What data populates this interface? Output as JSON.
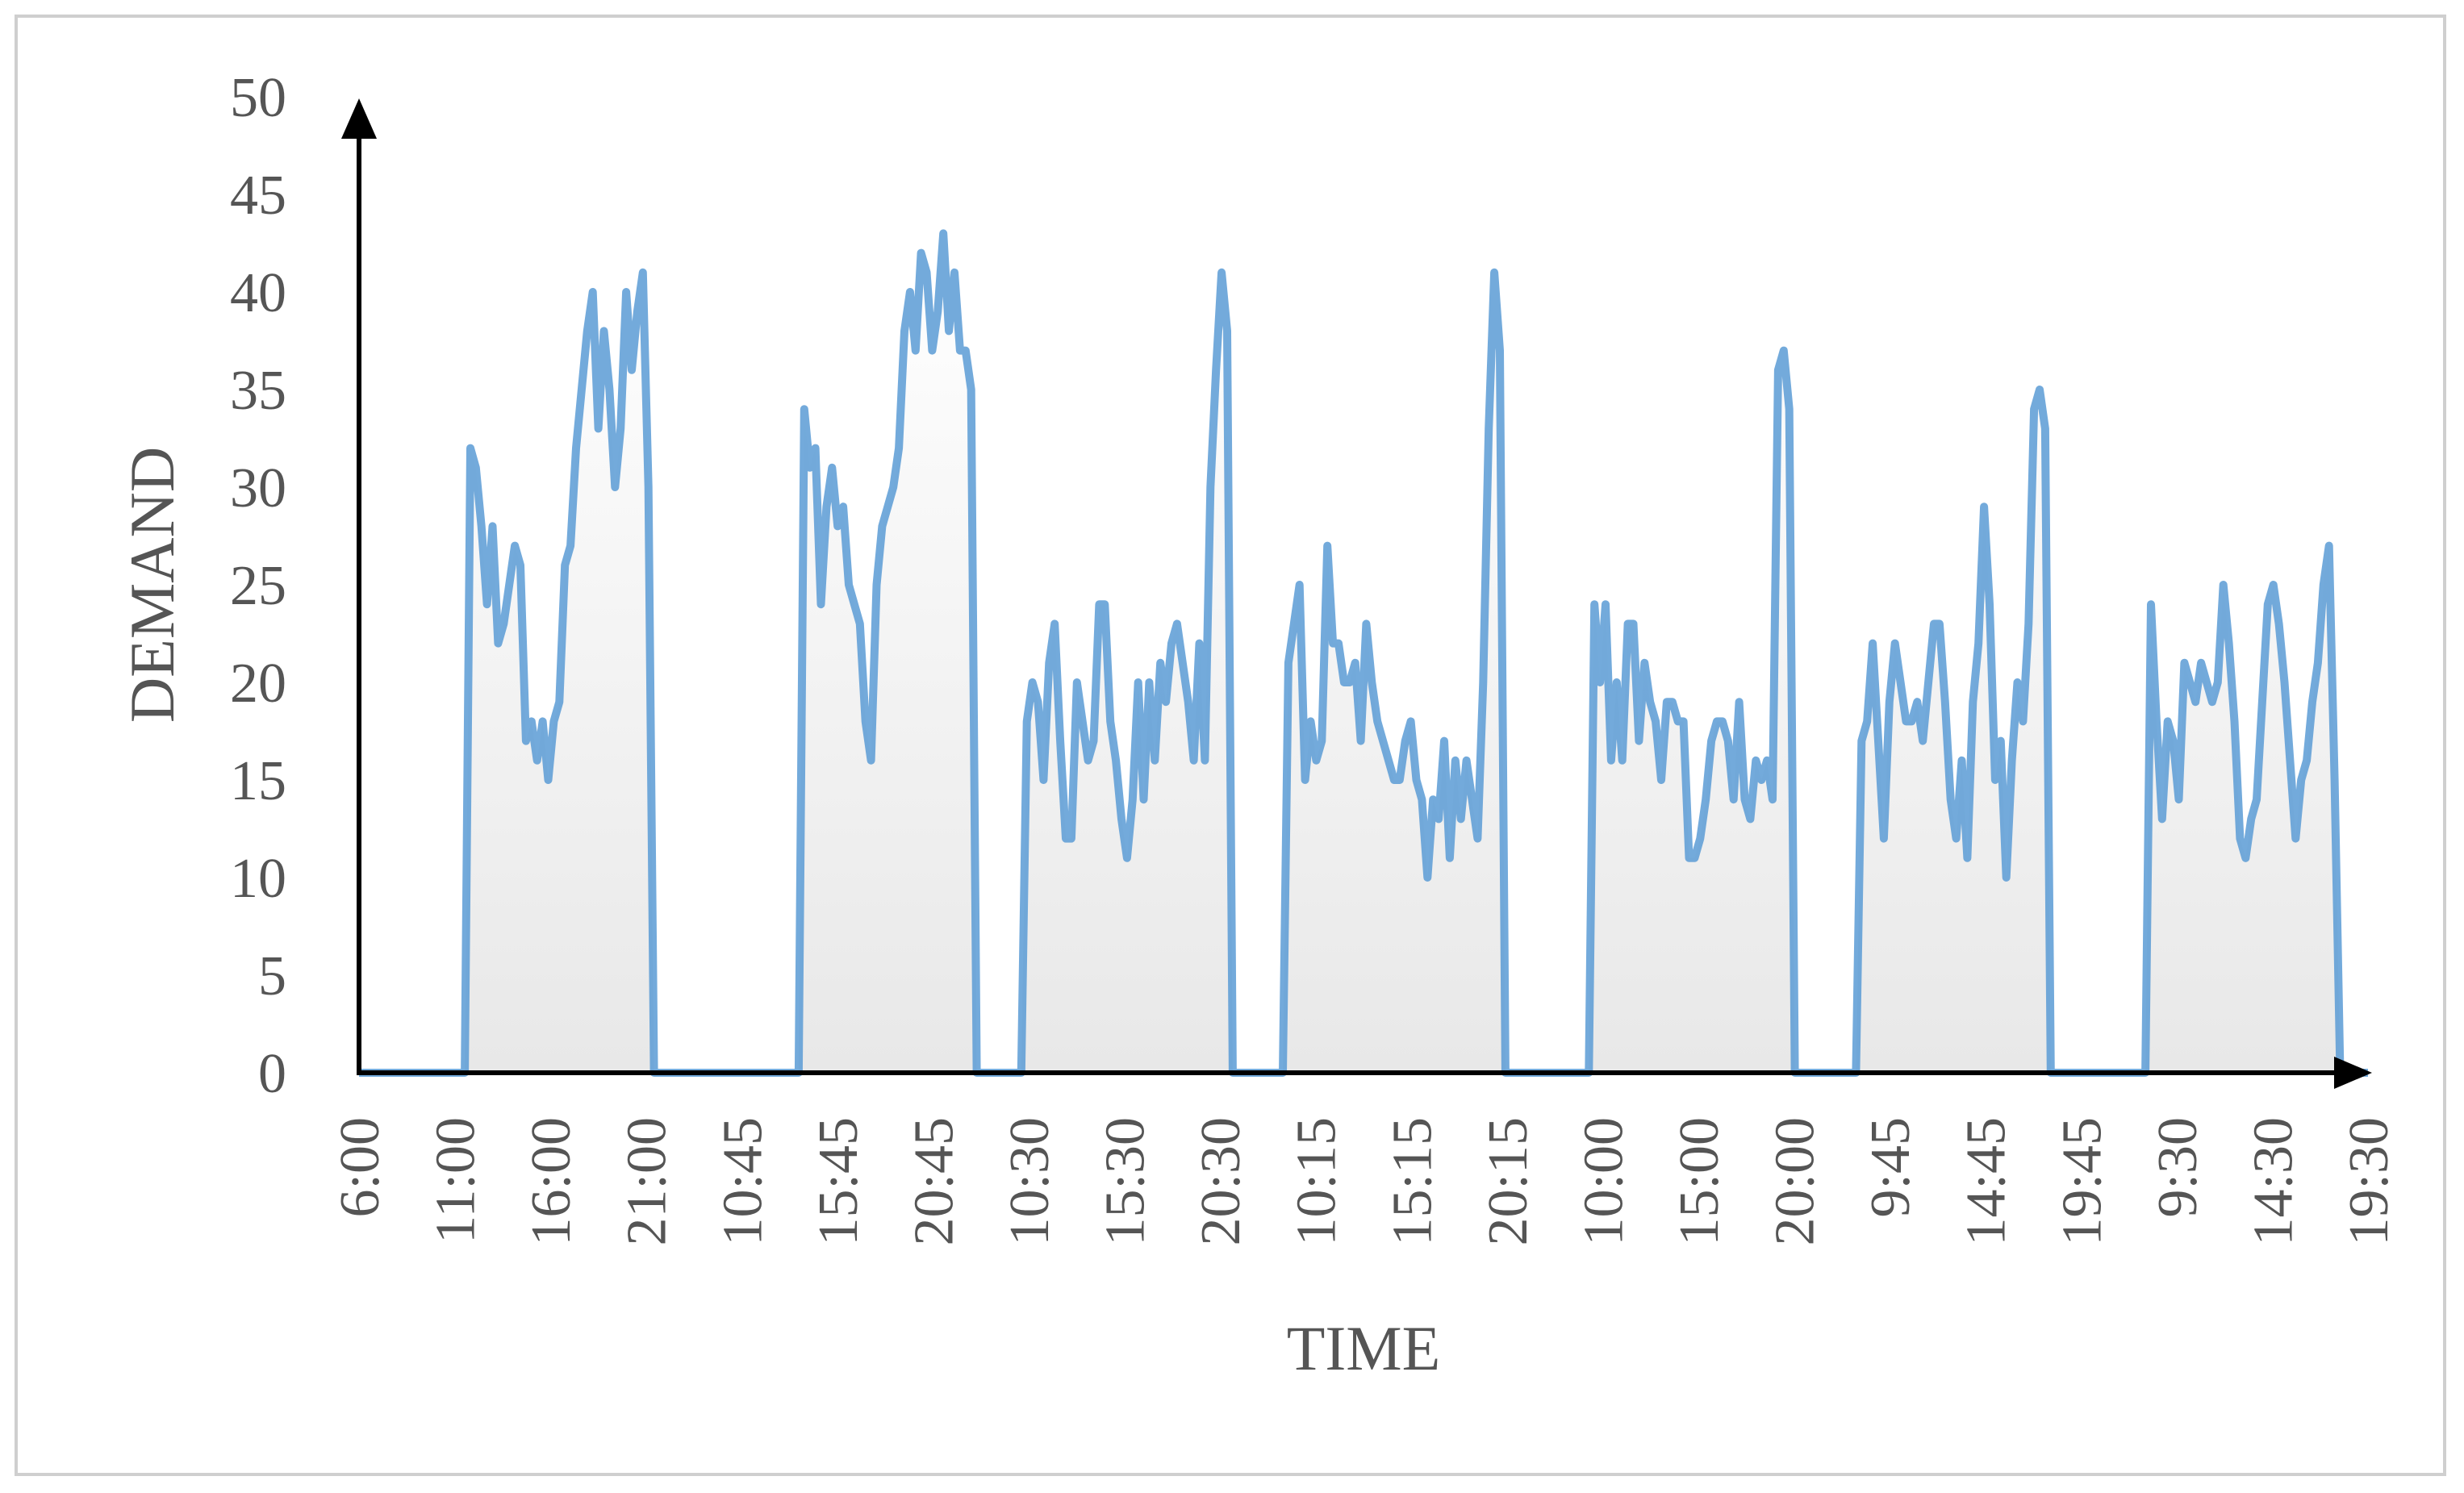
{
  "chart_data": {
    "type": "area",
    "title": "",
    "xlabel": "TIME",
    "ylabel": "DEMAND",
    "ylim": [
      0,
      50
    ],
    "yticks": [
      "0",
      "5",
      "10",
      "15",
      "20",
      "25",
      "30",
      "35",
      "40",
      "45",
      "50"
    ],
    "xtick_labels": [
      "6:00",
      "11:00",
      "16:00",
      "21:00",
      "10:45",
      "15:45",
      "20:45",
      "10:30",
      "15:30",
      "20:30",
      "10:15",
      "15:15",
      "20:15",
      "10:00",
      "15:00",
      "20:00",
      "9:45",
      "14:45",
      "19:45",
      "9:30",
      "14:30",
      "19:30"
    ],
    "grid": false,
    "legend": "none",
    "colors": {
      "line": "#5b9bd5",
      "fill_top": "#ffffff",
      "fill_bottom": "#e8e8e8",
      "axis": "#000000"
    },
    "series": [
      {
        "values": [
          0,
          0,
          0,
          0,
          0,
          0,
          0,
          0,
          0,
          0,
          0,
          0,
          0,
          0,
          0,
          0,
          0,
          0,
          0,
          0,
          32,
          31,
          28,
          24,
          28,
          22,
          23,
          25,
          27,
          26,
          17,
          18,
          16,
          18,
          15,
          18,
          19,
          26,
          27,
          32,
          35,
          38,
          40,
          33,
          38,
          35,
          30,
          33,
          40,
          36,
          39,
          41,
          30,
          0,
          0,
          0,
          0,
          0,
          0,
          0,
          0,
          0,
          0,
          0,
          0,
          0,
          0,
          0,
          0,
          0,
          0,
          0,
          0,
          0,
          0,
          0,
          0,
          0,
          0,
          0,
          34,
          31,
          32,
          24,
          29,
          31,
          28,
          29,
          25,
          24,
          23,
          18,
          16,
          25,
          28,
          29,
          30,
          32,
          38,
          40,
          37,
          42,
          41,
          37,
          39,
          43,
          38,
          41,
          37,
          37,
          35,
          0,
          0,
          0,
          0,
          0,
          0,
          0,
          0,
          0,
          18,
          20,
          19,
          15,
          21,
          23,
          17,
          12,
          12,
          20,
          18,
          16,
          17,
          24,
          24,
          18,
          16,
          13,
          11,
          14,
          20,
          14,
          20,
          16,
          21,
          19,
          22,
          23,
          21,
          19,
          16,
          22,
          16,
          30,
          36,
          41,
          38,
          0,
          0,
          0,
          0,
          0,
          0,
          0,
          0,
          0,
          0,
          21,
          23,
          25,
          15,
          18,
          16,
          17,
          27,
          22,
          22,
          20,
          20,
          21,
          17,
          23,
          20,
          18,
          17,
          16,
          15,
          15,
          17,
          18,
          15,
          14,
          10,
          14,
          13,
          17,
          11,
          16,
          13,
          16,
          14,
          12,
          20,
          33,
          41,
          37,
          0,
          0,
          0,
          0,
          0,
          0,
          0,
          0,
          0,
          0,
          0,
          0,
          0,
          0,
          0,
          0,
          24,
          20,
          24,
          16,
          20,
          16,
          23,
          23,
          17,
          21,
          19,
          18,
          15,
          19,
          19,
          18,
          18,
          11,
          11,
          12,
          14,
          17,
          18,
          18,
          17,
          14,
          19,
          14,
          13,
          16,
          15,
          16,
          14,
          36,
          37,
          34,
          0,
          0,
          0,
          0,
          0,
          0,
          0,
          0,
          0,
          0,
          0,
          0,
          17,
          18,
          22,
          17,
          12,
          19,
          22,
          20,
          18,
          18,
          19,
          17,
          20,
          23,
          23,
          19,
          14,
          12,
          16,
          11,
          19,
          22,
          29,
          24,
          15,
          17,
          10,
          16,
          20,
          18,
          23,
          34,
          35,
          33,
          0,
          0,
          0,
          0,
          0,
          0,
          0,
          0,
          0,
          0,
          0,
          0,
          0,
          0,
          0,
          0,
          0,
          0,
          24,
          18,
          13,
          18,
          17,
          14,
          21,
          20,
          19,
          21,
          20,
          19,
          20,
          25,
          22,
          18,
          12,
          11,
          13,
          14,
          19,
          24,
          25,
          23,
          20,
          16,
          12,
          15,
          16,
          19,
          21,
          25,
          27,
          15,
          0,
          0,
          0,
          0,
          0,
          0
        ]
      }
    ]
  }
}
